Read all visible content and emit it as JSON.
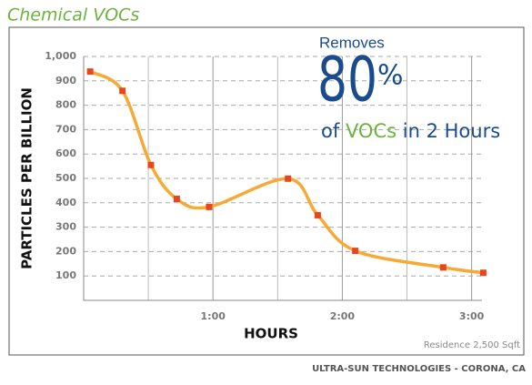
{
  "chart_data": {
    "type": "line",
    "title": "Chemical VOCs",
    "xlabel": "HOURS",
    "ylabel": "PARTICLES PER BILLION",
    "annotation": {
      "line1": "Removes",
      "big": "80",
      "big_unit": "%",
      "pre": "of",
      "highlight": "VOCs",
      "post": "in 2 Hours"
    },
    "note": "Residence 2,500 Sqft",
    "footer": "ULTRA-SUN TECHNOLOGIES - CORONA, CA",
    "series": [
      {
        "color": "#f7a935",
        "marker_color": "#e8461f",
        "x": [
          0.05,
          0.3,
          0.52,
          0.72,
          0.97,
          1.58,
          1.81,
          2.1,
          2.78,
          3.09
        ],
        "values": [
          938,
          859,
          555,
          416,
          383,
          499,
          349,
          203,
          135,
          113
        ]
      }
    ],
    "xlim": [
      0,
      3.08
    ],
    "xticks": [
      {
        "value": 1,
        "label": "1:00"
      },
      {
        "value": 2,
        "label": "2:00"
      },
      {
        "value": 3,
        "label": "3:00"
      }
    ],
    "x_minor_grid": [
      0.5,
      1.5,
      2.5
    ],
    "ylim": [
      0,
      1000
    ],
    "yticks": [
      100,
      200,
      300,
      400,
      500,
      600,
      700,
      800,
      900,
      {
        "value": 1000,
        "label": "1,000"
      }
    ],
    "grid": true
  }
}
